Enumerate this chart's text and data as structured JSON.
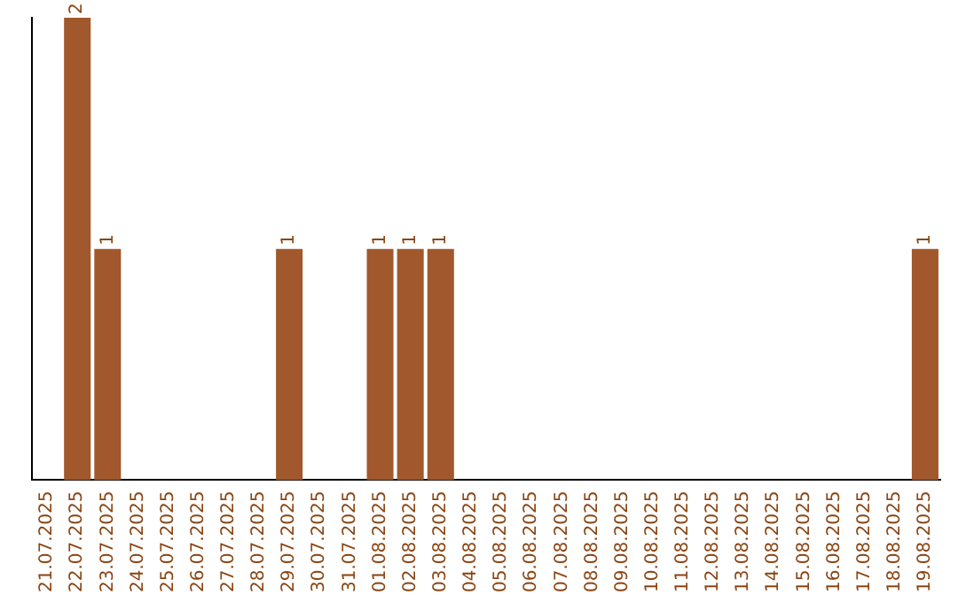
{
  "chart_data": {
    "type": "bar",
    "categories": [
      "21.07.2025",
      "22.07.2025",
      "23.07.2025",
      "24.07.2025",
      "25.07.2025",
      "26.07.2025",
      "27.07.2025",
      "28.07.2025",
      "29.07.2025",
      "30.07.2025",
      "31.07.2025",
      "01.08.2025",
      "02.08.2025",
      "03.08.2025",
      "04.08.2025",
      "05.08.2025",
      "06.08.2025",
      "07.08.2025",
      "08.08.2025",
      "09.08.2025",
      "10.08.2025",
      "11.08.2025",
      "12.08.2025",
      "13.08.2025",
      "14.08.2025",
      "15.08.2025",
      "16.08.2025",
      "17.08.2025",
      "18.08.2025",
      "19.08.2025"
    ],
    "values": [
      0,
      2,
      1,
      0,
      0,
      0,
      0,
      0,
      1,
      0,
      0,
      1,
      1,
      1,
      0,
      0,
      0,
      0,
      0,
      0,
      0,
      0,
      0,
      0,
      0,
      0,
      0,
      0,
      0,
      1
    ],
    "value_labels": [
      null,
      "2",
      "1",
      null,
      null,
      null,
      null,
      null,
      "1",
      null,
      null,
      "1",
      "1",
      "1",
      null,
      null,
      null,
      null,
      null,
      null,
      null,
      null,
      null,
      null,
      null,
      null,
      null,
      null,
      null,
      "1"
    ],
    "color": "#a0582c",
    "ylim": [
      0,
      2
    ],
    "grid": false,
    "legend": false,
    "tick_labels": "x"
  }
}
